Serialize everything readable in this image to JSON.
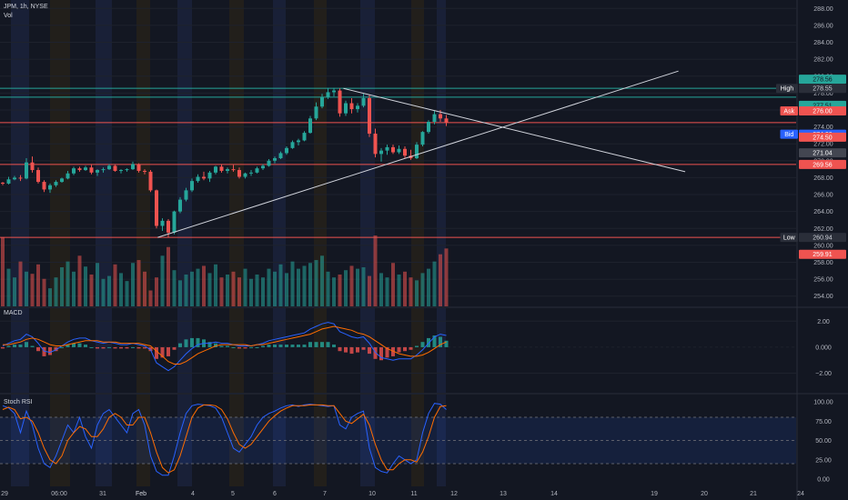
{
  "header": {
    "symbol_line": "JPM, 1h, NYSE",
    "vol_label": "Vol"
  },
  "panes": {
    "macd_label": "MACD",
    "stoch_label": "Stoch RSI"
  },
  "colors": {
    "up": "#26a69a",
    "down": "#ef5350",
    "macd_line": "#2962ff",
    "signal_line": "#ff6d00",
    "bg": "#131722",
    "axis_text": "#b2b5be"
  },
  "price_axis": {
    "ticks": [
      "288.00",
      "286.00",
      "284.00",
      "282.00",
      "280.00",
      "278.00",
      "276.00",
      "274.00",
      "272.00",
      "270.00",
      "268.00",
      "266.00",
      "264.00",
      "262.00",
      "260.00",
      "258.00",
      "256.00",
      "254.00"
    ],
    "labels": [
      {
        "text": "278.56",
        "kind": "teal"
      },
      {
        "text": "278.55",
        "kind": "plain",
        "tag": "High"
      },
      {
        "text": "277.51",
        "kind": "teal"
      },
      {
        "text": "276.00",
        "kind": "red",
        "tag": "Ask"
      },
      {
        "text": "274.00",
        "kind": "blue",
        "tag": "Bid"
      },
      {
        "text": "274.50",
        "kind": "red"
      },
      {
        "text": "271.04",
        "kind": "dark"
      },
      {
        "text": "269.56",
        "kind": "red"
      },
      {
        "text": "260.94",
        "kind": "plain",
        "tag": "Low"
      },
      {
        "text": "259.91",
        "kind": "red"
      }
    ]
  },
  "macd_axis": {
    "ticks": [
      "2.00",
      "0.000",
      "−2.00"
    ]
  },
  "stoch_axis": {
    "ticks": [
      "100.00",
      "75.00",
      "50.00",
      "25.00",
      "0.00"
    ]
  },
  "time_axis": {
    "labels": [
      "29",
      "06:00",
      "31",
      "Feb",
      "4",
      "5",
      "6",
      "7",
      "10",
      "11",
      "12",
      "13",
      "14",
      "19",
      "20",
      "21",
      "24"
    ]
  },
  "chart_data": {
    "type": "candlestick",
    "symbol": "JPM",
    "interval": "1h",
    "exchange": "NYSE",
    "ylim": [
      253,
      289
    ],
    "horizontal_levels": {
      "high": 278.55,
      "low": 260.94,
      "levels": [
        278.56,
        277.51,
        274.5,
        269.56,
        259.91
      ],
      "ask": 276.0,
      "bid": 274.0,
      "current": 271.04
    },
    "trendlines": [
      {
        "from": [
          0.186,
          260.94
        ],
        "to": [
          0.8,
          280.6
        ]
      },
      {
        "from": [
          0.405,
          278.55
        ],
        "to": [
          0.808,
          268.7
        ]
      }
    ],
    "candles": [
      [
        267.4,
        267.5,
        267.1,
        267.3
      ],
      [
        267.3,
        268.1,
        267.2,
        267.8
      ],
      [
        267.8,
        268.2,
        267.7,
        268.0
      ],
      [
        268.0,
        268.3,
        267.6,
        267.9
      ],
      [
        267.9,
        270.3,
        267.8,
        269.8
      ],
      [
        269.8,
        270.5,
        268.6,
        268.9
      ],
      [
        268.9,
        269.2,
        267.3,
        267.5
      ],
      [
        267.5,
        267.7,
        266.3,
        266.6
      ],
      [
        266.6,
        267.3,
        266.2,
        267.1
      ],
      [
        267.1,
        267.7,
        266.9,
        267.5
      ],
      [
        267.5,
        268.0,
        267.4,
        267.9
      ],
      [
        267.9,
        268.8,
        267.8,
        268.5
      ],
      [
        268.5,
        269.3,
        268.3,
        269.1
      ],
      [
        269.1,
        269.3,
        268.7,
        268.9
      ],
      [
        268.9,
        269.4,
        268.8,
        269.2
      ],
      [
        269.2,
        269.5,
        268.4,
        268.6
      ],
      [
        268.6,
        269.0,
        268.2,
        268.9
      ],
      [
        268.9,
        269.2,
        268.6,
        269.0
      ],
      [
        269.0,
        269.6,
        268.9,
        269.4
      ],
      [
        269.4,
        269.5,
        268.7,
        268.8
      ],
      [
        268.8,
        269.0,
        268.5,
        268.9
      ],
      [
        268.9,
        269.1,
        268.7,
        269.0
      ],
      [
        269.0,
        269.9,
        268.9,
        269.6
      ],
      [
        269.6,
        269.7,
        268.6,
        268.8
      ],
      [
        268.8,
        269.0,
        268.4,
        268.7
      ],
      [
        268.7,
        268.9,
        266.3,
        266.5
      ],
      [
        266.5,
        266.6,
        262.0,
        262.3
      ],
      [
        262.3,
        263.2,
        261.7,
        262.9
      ],
      [
        262.9,
        263.1,
        260.9,
        261.5
      ],
      [
        261.5,
        264.1,
        261.3,
        264.0
      ],
      [
        264.0,
        265.7,
        263.8,
        265.4
      ],
      [
        265.4,
        266.8,
        265.2,
        266.5
      ],
      [
        266.5,
        267.9,
        266.3,
        267.6
      ],
      [
        267.6,
        268.4,
        267.4,
        268.1
      ],
      [
        268.1,
        268.7,
        267.7,
        267.9
      ],
      [
        267.9,
        268.8,
        267.5,
        268.6
      ],
      [
        268.6,
        269.4,
        268.4,
        269.3
      ],
      [
        269.3,
        269.6,
        268.6,
        268.8
      ],
      [
        268.8,
        269.2,
        268.5,
        269.0
      ],
      [
        269.0,
        269.5,
        268.7,
        268.9
      ],
      [
        268.9,
        269.2,
        267.9,
        268.1
      ],
      [
        268.1,
        268.6,
        267.9,
        268.5
      ],
      [
        268.5,
        268.9,
        268.2,
        268.6
      ],
      [
        268.6,
        269.3,
        268.5,
        269.1
      ],
      [
        269.1,
        269.6,
        268.9,
        269.4
      ],
      [
        269.4,
        270.2,
        269.3,
        270.0
      ],
      [
        270.0,
        270.5,
        269.7,
        270.3
      ],
      [
        270.3,
        271.1,
        270.2,
        270.9
      ],
      [
        270.9,
        271.7,
        270.7,
        271.5
      ],
      [
        271.5,
        272.4,
        271.4,
        272.2
      ],
      [
        272.2,
        272.6,
        271.8,
        272.4
      ],
      [
        272.4,
        273.5,
        272.3,
        273.3
      ],
      [
        273.3,
        275.3,
        273.2,
        275.0
      ],
      [
        275.0,
        276.9,
        274.8,
        276.4
      ],
      [
        276.4,
        277.9,
        276.2,
        277.5
      ],
      [
        277.5,
        278.6,
        277.3,
        278.1
      ],
      [
        278.1,
        278.6,
        277.6,
        278.3
      ],
      [
        278.3,
        278.55,
        275.2,
        275.6
      ],
      [
        275.6,
        277.1,
        275.3,
        276.8
      ],
      [
        276.8,
        277.4,
        275.6,
        276.1
      ],
      [
        276.1,
        276.8,
        275.7,
        276.5
      ],
      [
        276.5,
        277.9,
        276.3,
        277.4
      ],
      [
        277.4,
        277.8,
        272.8,
        273.2
      ],
      [
        273.2,
        273.8,
        270.4,
        270.8
      ],
      [
        270.8,
        271.5,
        269.9,
        271.2
      ],
      [
        271.2,
        271.9,
        270.7,
        271.6
      ],
      [
        271.6,
        271.9,
        270.8,
        271.0
      ],
      [
        271.0,
        271.8,
        270.8,
        271.4
      ],
      [
        271.4,
        271.7,
        270.3,
        270.6
      ],
      [
        270.6,
        271.3,
        270.1,
        270.3
      ],
      [
        270.3,
        272.2,
        270.2,
        271.9
      ],
      [
        271.9,
        273.5,
        271.7,
        273.4
      ],
      [
        273.4,
        274.8,
        273.2,
        274.6
      ],
      [
        274.6,
        275.9,
        274.3,
        275.5
      ],
      [
        275.5,
        276.0,
        274.6,
        275.0
      ],
      [
        275.0,
        275.4,
        274.1,
        274.5
      ]
    ],
    "volume": [
      95,
      52,
      40,
      62,
      48,
      45,
      58,
      38,
      25,
      40,
      54,
      62,
      48,
      70,
      55,
      44,
      60,
      38,
      42,
      58,
      46,
      35,
      60,
      64,
      48,
      22,
      40,
      70,
      82,
      50,
      36,
      44,
      48,
      52,
      56,
      46,
      58,
      40,
      44,
      48,
      40,
      52,
      38,
      44,
      40,
      52,
      48,
      58,
      46,
      62,
      52,
      56,
      60,
      64,
      70,
      48,
      40,
      44,
      50,
      56,
      52,
      54,
      42,
      98,
      46,
      40,
      60,
      44,
      48,
      40,
      36,
      46,
      52,
      62,
      72,
      80
    ],
    "macd": {
      "macd_line": [
        0.1,
        0.3,
        0.5,
        0.6,
        1.0,
        0.8,
        0.3,
        -0.3,
        -0.4,
        -0.2,
        0.1,
        0.4,
        0.6,
        0.7,
        0.7,
        0.5,
        0.4,
        0.3,
        0.4,
        0.3,
        0.2,
        0.2,
        0.3,
        0.2,
        0.1,
        -0.2,
        -1.2,
        -1.5,
        -1.8,
        -1.5,
        -1.0,
        -0.5,
        -0.1,
        0.2,
        0.3,
        0.3,
        0.4,
        0.3,
        0.3,
        0.2,
        0.1,
        0.1,
        0.1,
        0.2,
        0.3,
        0.5,
        0.6,
        0.7,
        0.8,
        0.9,
        1.0,
        1.1,
        1.4,
        1.6,
        1.8,
        1.9,
        1.8,
        1.2,
        1.0,
        0.8,
        0.7,
        0.8,
        0.3,
        -0.4,
        -0.8,
        -0.9,
        -1.0,
        -0.9,
        -0.9,
        -0.9,
        -0.6,
        -0.2,
        0.3,
        0.8,
        1.0,
        0.9
      ],
      "signal_line": [
        0.2,
        0.2,
        0.3,
        0.4,
        0.6,
        0.7,
        0.6,
        0.4,
        0.2,
        0.1,
        0.1,
        0.2,
        0.3,
        0.4,
        0.5,
        0.5,
        0.5,
        0.4,
        0.4,
        0.4,
        0.3,
        0.3,
        0.3,
        0.3,
        0.2,
        0.1,
        -0.3,
        -0.7,
        -1.1,
        -1.3,
        -1.3,
        -1.1,
        -0.8,
        -0.5,
        -0.3,
        -0.1,
        0.1,
        0.2,
        0.2,
        0.2,
        0.2,
        0.2,
        0.1,
        0.2,
        0.2,
        0.3,
        0.4,
        0.5,
        0.6,
        0.7,
        0.8,
        0.9,
        1.0,
        1.2,
        1.4,
        1.5,
        1.6,
        1.5,
        1.4,
        1.3,
        1.1,
        1.0,
        0.8,
        0.5,
        0.2,
        -0.1,
        -0.3,
        -0.5,
        -0.6,
        -0.7,
        -0.7,
        -0.6,
        -0.4,
        -0.1,
        0.2,
        0.4
      ]
    },
    "stoch_rsi": {
      "k": [
        95,
        92,
        85,
        60,
        88,
        70,
        40,
        20,
        15,
        30,
        50,
        70,
        60,
        80,
        55,
        40,
        70,
        85,
        90,
        80,
        70,
        60,
        85,
        90,
        70,
        30,
        10,
        5,
        5,
        30,
        60,
        85,
        95,
        97,
        96,
        95,
        92,
        80,
        60,
        40,
        35,
        45,
        55,
        70,
        80,
        85,
        88,
        92,
        95,
        96,
        94,
        96,
        97,
        96,
        95,
        94,
        95,
        70,
        65,
        80,
        85,
        88,
        40,
        15,
        10,
        8,
        20,
        30,
        25,
        20,
        25,
        60,
        85,
        98,
        97,
        90
      ],
      "d": [
        90,
        93,
        90,
        78,
        80,
        75,
        60,
        40,
        25,
        20,
        30,
        50,
        60,
        68,
        65,
        55,
        55,
        65,
        80,
        85,
        80,
        70,
        70,
        80,
        80,
        60,
        35,
        15,
        8,
        12,
        30,
        55,
        80,
        92,
        96,
        96,
        95,
        90,
        78,
        60,
        45,
        40,
        45,
        55,
        65,
        75,
        82,
        88,
        92,
        95,
        95,
        95,
        96,
        96,
        96,
        95,
        95,
        85,
        75,
        72,
        78,
        84,
        70,
        45,
        25,
        12,
        12,
        20,
        25,
        25,
        22,
        35,
        55,
        80,
        94,
        95
      ]
    }
  }
}
